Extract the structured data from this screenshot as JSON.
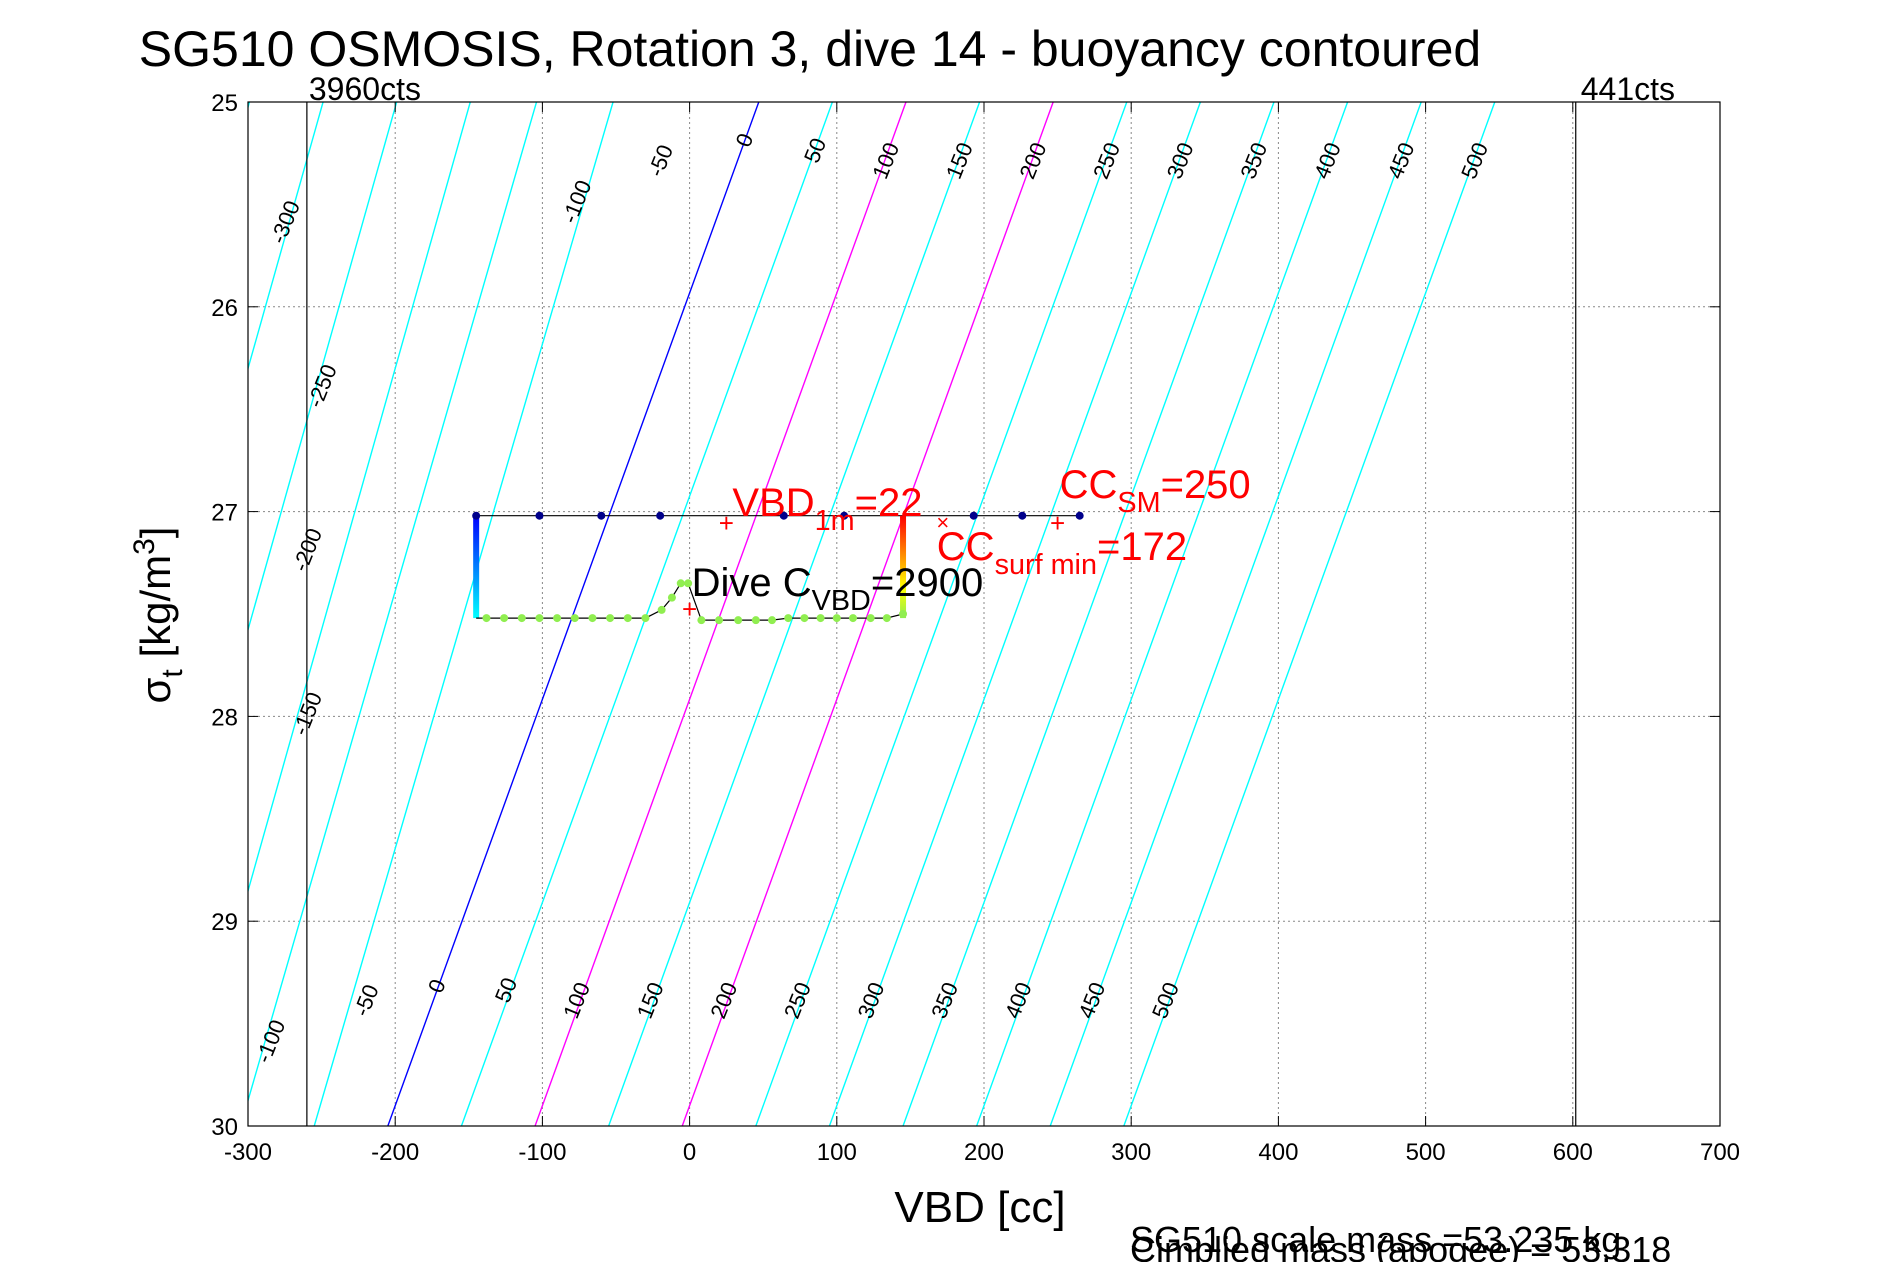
{
  "chart_data": {
    "type": "line",
    "title": "SG510 OSMOSIS, Rotation 3, dive 14 - buoyancy contoured",
    "xlabel": "VBD [cc]",
    "ylabel": "σt [kg/m3]",
    "ylabel_main": "σ",
    "ylabel_sub": "t",
    "ylabel_unit": " [kg/m",
    "ylabel_sup": "3",
    "ylabel_close": "]",
    "xlim": [
      -300,
      700
    ],
    "ylim": [
      25,
      30
    ],
    "y_reversed": true,
    "grid": true,
    "xticks": [
      -300,
      -200,
      -100,
      0,
      100,
      200,
      300,
      400,
      500,
      600,
      700
    ],
    "yticks": [
      25,
      26,
      27,
      28,
      29,
      30
    ],
    "tick_labels_x": [
      "-300",
      "-200",
      "-100",
      "0",
      "100",
      "200",
      "300",
      "400",
      "500",
      "600",
      "700"
    ],
    "tick_labels_y": [
      "25",
      "26",
      "27",
      "28",
      "29",
      "30"
    ],
    "vbd_limits": [
      {
        "x": -260,
        "label": "3960cts"
      },
      {
        "x": 602,
        "label": "441cts"
      }
    ],
    "buoyancy_contours": {
      "values": [
        -300,
        -250,
        -200,
        -150,
        -100,
        -50,
        0,
        50,
        100,
        150,
        200,
        250,
        300,
        350,
        400,
        450,
        500
      ],
      "x_at_sigma25": [
        -299,
        -249,
        -199,
        -149,
        -104,
        -52,
        47,
        97,
        147,
        197,
        247,
        297,
        347,
        397,
        447,
        497,
        547
      ],
      "x_at_sigma30": [
        -495,
        -445,
        -395,
        -345,
        -305,
        -255,
        -205,
        -155,
        -105,
        -55,
        -5,
        45,
        95,
        145,
        195,
        245,
        295
      ],
      "highlight": {
        "0": "#0000ff",
        "100": "#ff00ff",
        "200": "#ff00ff"
      },
      "color": "#00ffff",
      "top_labels": [
        {
          "value": "-300",
          "x": -270,
          "y": 25.6
        },
        {
          "value": "-250",
          "x": -245,
          "y": 26.4
        },
        {
          "value": "-200",
          "x": -255,
          "y": 27.2
        },
        {
          "value": "-150",
          "x": -255,
          "y": 28.0
        },
        {
          "value": "-100",
          "x": -72,
          "y": 25.5
        },
        {
          "value": "-50",
          "x": -15,
          "y": 25.3
        },
        {
          "value": "0",
          "x": 42,
          "y": 25.2
        },
        {
          "value": "50",
          "x": 90,
          "y": 25.25
        },
        {
          "value": "100",
          "x": 138,
          "y": 25.3
        },
        {
          "value": "150",
          "x": 188,
          "y": 25.3
        },
        {
          "value": "200",
          "x": 238,
          "y": 25.3
        },
        {
          "value": "250",
          "x": 288,
          "y": 25.3
        },
        {
          "value": "300",
          "x": 338,
          "y": 25.3
        },
        {
          "value": "350",
          "x": 388,
          "y": 25.3
        },
        {
          "value": "400",
          "x": 438,
          "y": 25.3
        },
        {
          "value": "450",
          "x": 488,
          "y": 25.3
        },
        {
          "value": "500",
          "x": 538,
          "y": 25.3
        }
      ],
      "bottom_labels": [
        {
          "value": "-100",
          "x": -280,
          "y": 29.6
        },
        {
          "value": "-50",
          "x": -215,
          "y": 29.4
        },
        {
          "value": "0",
          "x": -167,
          "y": 29.33
        },
        {
          "value": "50",
          "x": -120,
          "y": 29.35
        },
        {
          "value": "100",
          "x": -72,
          "y": 29.4
        },
        {
          "value": "150",
          "x": -22,
          "y": 29.4
        },
        {
          "value": "200",
          "x": 28,
          "y": 29.4
        },
        {
          "value": "250",
          "x": 78,
          "y": 29.4
        },
        {
          "value": "300",
          "x": 128,
          "y": 29.4
        },
        {
          "value": "350",
          "x": 178,
          "y": 29.4
        },
        {
          "value": "400",
          "x": 228,
          "y": 29.4
        },
        {
          "value": "450",
          "x": 278,
          "y": 29.4
        },
        {
          "value": "500",
          "x": 328,
          "y": 29.4
        }
      ]
    },
    "dive_track": {
      "top_x": [
        -145,
        -102,
        -60,
        -20,
        64,
        105,
        193,
        226,
        265
      ],
      "top_y": 27.02,
      "left_color_top": "#0000ff",
      "left_color_bottom": "#00ffff",
      "bottom_x": [
        -138,
        -126,
        -114,
        -102,
        -90,
        -78,
        -66,
        -54,
        -42,
        -30,
        -19,
        -12,
        -6,
        -1,
        8,
        20,
        33,
        45,
        56,
        67,
        78,
        89,
        100,
        111,
        123,
        134,
        145
      ],
      "bottom_y": [
        27.52,
        27.52,
        27.52,
        27.52,
        27.52,
        27.52,
        27.52,
        27.52,
        27.52,
        27.52,
        27.48,
        27.42,
        27.35,
        27.35,
        27.53,
        27.53,
        27.53,
        27.53,
        27.53,
        27.52,
        27.52,
        27.52,
        27.52,
        27.52,
        27.52,
        27.52,
        27.5
      ],
      "marker_color": "#00008b",
      "bottom_marker_color": "#90ee50"
    },
    "annotations": {
      "vbd1m": {
        "main": "VBD",
        "sub": "1m",
        "rest": "=22",
        "x": 25,
        "y": 27.05,
        "color": "#ff0000"
      },
      "ccsm": {
        "main": "CC",
        "sub": "SM",
        "rest": "=250",
        "x": 250,
        "y": 27.05,
        "color": "#ff0000"
      },
      "ccsurf": {
        "main": "CC",
        "sub": "surf min",
        "rest": "=172",
        "x": 172,
        "y": 27.05,
        "color": "#ff0000"
      },
      "dive_cvbd": {
        "main": "Dive C",
        "sub": "VBD",
        "rest": "=2900",
        "x": 0,
        "y": 27.47,
        "color": "#000000"
      }
    },
    "footer": [
      "SG510 scale mass =53.235 kg",
      "implied mass (apogee) = 53.318"
    ],
    "footer_prefix": "C"
  }
}
